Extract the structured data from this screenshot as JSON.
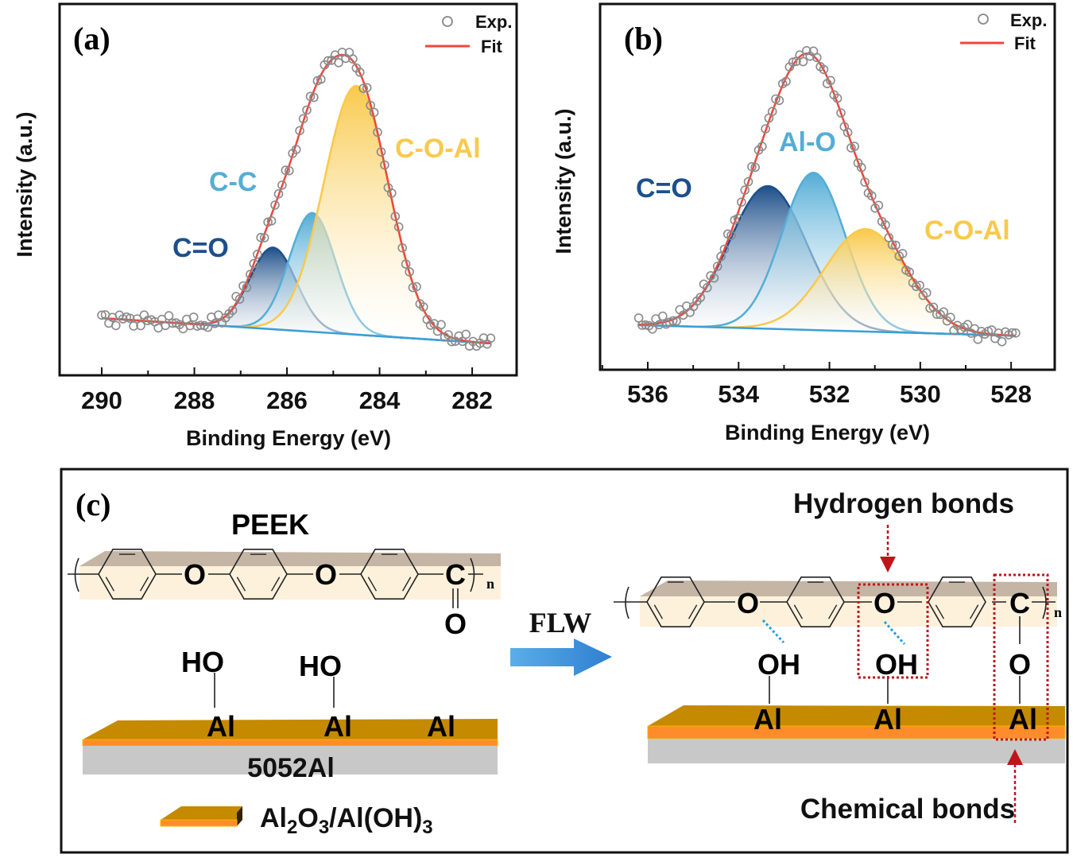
{
  "chart_data": [
    {
      "type": "line",
      "panel_label": "(a)",
      "xlabel": "Binding Energy (eV)",
      "ylabel": "Intensity (a.u.)",
      "xlim": [
        290.91,
        281.04
      ],
      "x_reversed": true,
      "ylim": [
        0,
        1
      ],
      "xticks": [
        "290",
        "288",
        "286",
        "284",
        "282"
      ],
      "xtick_values": [
        290,
        288,
        286,
        284,
        282
      ],
      "y_ticks_shown": false,
      "grid": false,
      "legend": {
        "position": "top-right",
        "entries": [
          {
            "label": "Exp.",
            "marker": "open-circle",
            "color": "#888888"
          },
          {
            "label": "Fit",
            "marker": "line",
            "color": "#f0463c"
          }
        ]
      },
      "data_range": [
        290.0,
        281.6
      ],
      "background": {
        "type": "linear",
        "start": [
          290.0,
          0.154
        ],
        "end": [
          281.6,
          0.086
        ]
      },
      "peaks": [
        {
          "name": "C=O",
          "center": 286.3,
          "height": 0.22,
          "sigma": 0.5,
          "color": "#1d4f8a"
        },
        {
          "name": "C-C",
          "center": 285.45,
          "height": 0.32,
          "sigma": 0.5,
          "color": "#54add6"
        },
        {
          "name": "C-O-Al",
          "center": 284.5,
          "height": 0.67,
          "sigma": 0.7,
          "color": "#f9c94b"
        }
      ],
      "fit_color": "#f0463c"
    },
    {
      "type": "line",
      "panel_label": "(b)",
      "xlabel": "Binding Energy (eV)",
      "ylabel": "Intensity (a.u.)",
      "xlim": [
        537.05,
        527.04
      ],
      "x_reversed": true,
      "ylim": [
        0,
        1
      ],
      "xticks": [
        "536",
        "534",
        "532",
        "530",
        "528"
      ],
      "xtick_values": [
        536,
        534,
        532,
        530,
        528
      ],
      "y_ticks_shown": false,
      "grid": false,
      "legend": {
        "position": "top-right",
        "entries": [
          {
            "label": "Exp.",
            "marker": "open-circle",
            "color": "#888888"
          },
          {
            "label": "Fit",
            "marker": "line",
            "color": "#f0463c"
          }
        ]
      },
      "data_range": [
        536.2,
        527.9
      ],
      "background": {
        "type": "linear",
        "start": [
          536.2,
          0.122
        ],
        "end": [
          527.9,
          0.093
        ]
      },
      "peaks": [
        {
          "name": "C=O",
          "center": 533.35,
          "height": 0.39,
          "sigma": 0.85,
          "color": "#1d4f8a"
        },
        {
          "name": "Al-O",
          "center": 532.35,
          "height": 0.43,
          "sigma": 0.7,
          "color": "#54add6"
        },
        {
          "name": "C-O-Al",
          "center": 531.2,
          "height": 0.28,
          "sigma": 0.9,
          "color": "#f9c94b"
        }
      ],
      "fit_color": "#f0463c"
    }
  ],
  "diagram": {
    "panel_label": "(c)",
    "polymer_name": "PEEK",
    "atoms_left": {
      "o1": "O",
      "o2": "O",
      "c": "C",
      "carbonyl_o": "O",
      "n": "n"
    },
    "surface_left": {
      "groups": [
        "HO",
        "HO"
      ],
      "al": [
        "Al",
        "Al",
        "Al"
      ],
      "substrate": "5052Al"
    },
    "legend": {
      "parts": [
        {
          "t": "Al"
        },
        {
          "t": "2",
          "sub": true
        },
        {
          "t": "O"
        },
        {
          "t": "3",
          "sub": true
        },
        {
          "t": "/Al(OH)"
        },
        {
          "t": "3",
          "sub": true
        }
      ]
    },
    "process_label": "FLW",
    "atoms_right": {
      "o1": "O",
      "o2": "O",
      "c": "C",
      "n": "n",
      "groups": [
        "OH",
        "OH",
        "O"
      ],
      "al": [
        "Al",
        "Al",
        "Al"
      ]
    },
    "annotations": {
      "hydrogen": "Hydrogen bonds",
      "chemical": "Chemical bonds"
    },
    "colors": {
      "oxide_top": "#c58a00",
      "oxide_edge": "#ff8c2a",
      "substrate": "#c8c8c8",
      "polymer_top": "#c4b5a5",
      "polymer_front": "#fdf1dc",
      "hbond": "#1aa0e8",
      "highlight": "#c0141c",
      "arrow": "#3f8fd8"
    }
  }
}
